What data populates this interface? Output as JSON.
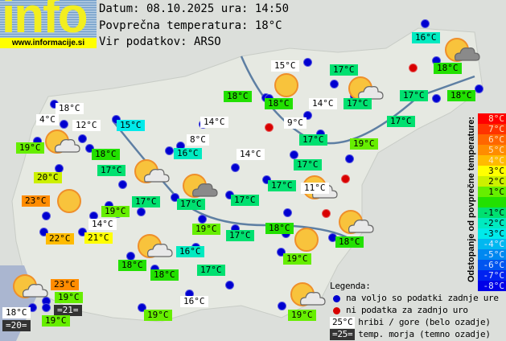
{
  "logo": {
    "text": "info",
    "url": "www.informacije.si"
  },
  "header": {
    "date_line": "Datum: 08.10.2025 ura: 14:50",
    "avg_line": "Povprečna temperatura: 18°C",
    "source_line": "Vir podatkov: ARSO"
  },
  "colors": {
    "-2": "#00eac0",
    "-3": "#00eaea",
    "-1": "#00e070",
    "0": "#22e000",
    "1": "#66ee00",
    "2": "#ccf000",
    "3": "#ffff00",
    "4": "#ffbb00",
    "5": "#ff8c00",
    "mountain": "#ffffff",
    "sea": "#333333",
    "station": "#0000d0",
    "missing": "#d80000"
  },
  "stations": [
    {
      "t": "16°C",
      "k": "-2"
    },
    {
      "t": "18°C",
      "k": "0"
    },
    {
      "t": "15°C",
      "k": "mountain"
    },
    {
      "t": "17°C",
      "k": "-1"
    },
    {
      "t": "18°C",
      "k": "0"
    },
    {
      "t": "18°C",
      "k": "0"
    },
    {
      "t": "14°C",
      "k": "mountain"
    },
    {
      "t": "17°C",
      "k": "-1"
    },
    {
      "t": "17°C",
      "k": "-1"
    },
    {
      "t": "18°C",
      "k": "0"
    },
    {
      "t": "18°C",
      "k": "mountain"
    },
    {
      "t": "4°C",
      "k": "mountain"
    },
    {
      "t": "12°C",
      "k": "mountain"
    },
    {
      "t": "15°C",
      "k": "-3"
    },
    {
      "t": "14°C",
      "k": "mountain"
    },
    {
      "t": "9°C",
      "k": "mountain"
    },
    {
      "t": "17°C",
      "k": "-1"
    },
    {
      "t": "19°C",
      "k": "1"
    },
    {
      "t": "18°C",
      "k": "0"
    },
    {
      "t": "8°C",
      "k": "mountain"
    },
    {
      "t": "16°C",
      "k": "-2"
    },
    {
      "t": "17°C",
      "k": "-1"
    },
    {
      "t": "19°C",
      "k": "1"
    },
    {
      "t": "14°C",
      "k": "mountain"
    },
    {
      "t": "17°C",
      "k": "-1"
    },
    {
      "t": "17°C",
      "k": "-1"
    },
    {
      "t": "20°C",
      "k": "2"
    },
    {
      "t": "17°C",
      "k": "-1"
    },
    {
      "t": "17°C",
      "k": "-1"
    },
    {
      "t": "17°C",
      "k": "-1"
    },
    {
      "t": "17°C",
      "k": "-1"
    },
    {
      "t": "11°C",
      "k": "mountain"
    },
    {
      "t": "23°C",
      "k": "5"
    },
    {
      "t": "19°C",
      "k": "1"
    },
    {
      "t": "14°C",
      "k": "mountain"
    },
    {
      "t": "18°C",
      "k": "0"
    },
    {
      "t": "19°C",
      "k": "1"
    },
    {
      "t": "17°C",
      "k": "-1"
    },
    {
      "t": "22°C",
      "k": "4"
    },
    {
      "t": "21°C",
      "k": "3"
    },
    {
      "t": "18°C",
      "k": "0"
    },
    {
      "t": "16°C",
      "k": "-2"
    },
    {
      "t": "19°C",
      "k": "1"
    },
    {
      "t": "18°C",
      "k": "0"
    },
    {
      "t": "18°C",
      "k": "0"
    },
    {
      "t": "17°C",
      "k": "-1"
    },
    {
      "t": "23°C",
      "k": "5"
    },
    {
      "t": "19°C",
      "k": "1"
    },
    {
      "t": "16°C",
      "k": "mountain"
    },
    {
      "t": "18°C",
      "k": "mountain"
    },
    {
      "t": "=21=",
      "k": "sea"
    },
    {
      "t": "19°C",
      "k": "1"
    },
    {
      "t": "19°C",
      "k": "1"
    },
    {
      "t": "19°C",
      "k": "1"
    },
    {
      "t": "=20=",
      "k": "sea"
    }
  ],
  "weather_icons": [
    "sun-cloud-dark",
    "sun",
    "sun-cloud",
    "sun-cloud",
    "sun-cloud",
    "sun-cloud-dark",
    "sun",
    "sun-cloud",
    "sun-cloud",
    "sun",
    "sun-cloud",
    "sun-cloud",
    "sun-cloud"
  ],
  "scale": {
    "title": "Odstopanje od povprečne temperature:",
    "items": [
      {
        "label": "8°C",
        "color": "#ff0000"
      },
      {
        "label": "7°C",
        "color": "#ff3300"
      },
      {
        "label": "6°C",
        "color": "#ff6600"
      },
      {
        "label": "5°C",
        "color": "#ff8c00"
      },
      {
        "label": "4°C",
        "color": "#ffbb00"
      },
      {
        "label": "3°C",
        "color": "#ffff00"
      },
      {
        "label": "2°C",
        "color": "#ccf000"
      },
      {
        "label": "1°C",
        "color": "#66ee00"
      },
      {
        "label": "",
        "color": "#22e000"
      },
      {
        "label": "-1°C",
        "color": "#00e070"
      },
      {
        "label": "-2°C",
        "color": "#00eac0"
      },
      {
        "label": "-3°C",
        "color": "#00eaea"
      },
      {
        "label": "-4°C",
        "color": "#00b8f0"
      },
      {
        "label": "-5°C",
        "color": "#0088f0"
      },
      {
        "label": "-6°C",
        "color": "#0055f0"
      },
      {
        "label": "-7°C",
        "color": "#0022f0"
      },
      {
        "label": "-8°C",
        "color": "#0000e8"
      }
    ]
  },
  "legend": {
    "title": "Legenda:",
    "available": "na voljo so podatki zadnje ure",
    "missing": "ni podatka za zadnjo uro",
    "mountain_sample": "25°C",
    "mountain_text": "hribi / gore (belo ozadje)",
    "sea_sample": "=25=",
    "sea_text": "temp. morja (temno ozadje)"
  }
}
